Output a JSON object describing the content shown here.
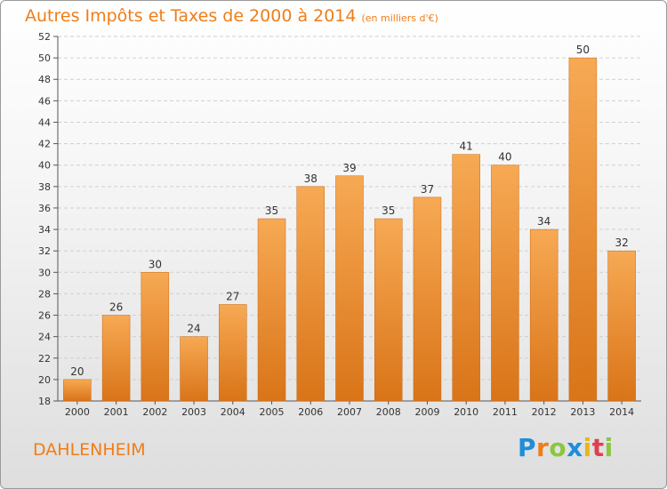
{
  "header": {
    "title": "Autres Impôts et Taxes de 2000 à 2014",
    "subtitle": "(en milliers d'€)"
  },
  "footer": {
    "town": "DAHLENHEIM",
    "logo_text": "Proxiti",
    "logo_colors": [
      "#1e8ed8",
      "#f07d18",
      "#8cc63e",
      "#1e8ed8",
      "#e8b617",
      "#e0404d",
      "#8cc63e"
    ]
  },
  "colors": {
    "accent": "#f07d18",
    "bar_light": "#f7a954",
    "bar_dark": "#d97418",
    "grid": "#cfcfcf",
    "axis": "#555555"
  },
  "chart_data": {
    "type": "bar",
    "title": "Autres Impôts et Taxes de 2000 à 2014",
    "subtitle": "(en milliers d'€)",
    "xlabel": "",
    "ylabel": "",
    "categories": [
      "2000",
      "2001",
      "2002",
      "2003",
      "2004",
      "2005",
      "2006",
      "2007",
      "2008",
      "2009",
      "2010",
      "2011",
      "2012",
      "2013",
      "2014"
    ],
    "values": [
      20,
      26,
      30,
      24,
      27,
      35,
      38,
      39,
      35,
      37,
      41,
      40,
      34,
      50,
      32
    ],
    "ylim": [
      18,
      52
    ],
    "yticks": [
      18,
      20,
      22,
      24,
      26,
      28,
      30,
      32,
      34,
      36,
      38,
      40,
      42,
      44,
      46,
      48,
      50,
      52
    ],
    "grid": true,
    "grid_style": "dashed",
    "data_labels": true,
    "legend": "none"
  }
}
